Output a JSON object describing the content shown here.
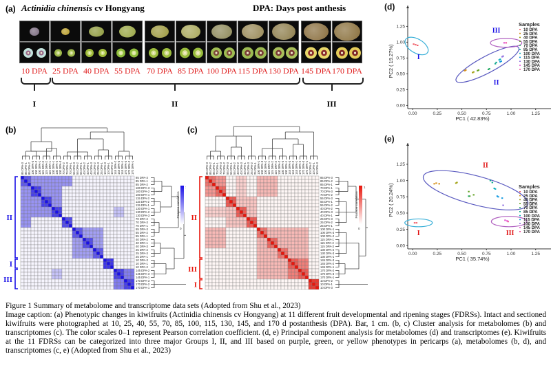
{
  "panel_a": {
    "label": "(a)",
    "species_italic": "Actinidia chinensis",
    "species_rest": " cv Hongyang",
    "dpa_legend": "DPA: Days post anthesis",
    "stages": [
      {
        "label": "10 DPA",
        "skin": "#7a6a7e",
        "flesh": "#c4e3dd",
        "core": "#9a6a8a",
        "phase": "purple"
      },
      {
        "label": "25 DPA",
        "skin": "#b99e2a",
        "flesh": "#9eb84a",
        "core": "#c9d88a",
        "phase": "green"
      },
      {
        "label": "40 DPA",
        "skin": "#8e9a3c",
        "flesh": "#9fbb3a",
        "core": "#d0df8c",
        "phase": "green"
      },
      {
        "label": "55 DPA",
        "skin": "#9aa644",
        "flesh": "#8ebd3b",
        "core": "#d7e69a",
        "phase": "green"
      },
      {
        "label": "70 DPA",
        "skin": "#9e9a40",
        "flesh": "#9cbd3c",
        "core": "#d8df9a",
        "phase": "green"
      },
      {
        "label": "85 DPA",
        "skin": "#a9a85a",
        "flesh": "#98bc3c",
        "core": "#e0e0a0",
        "phase": "green"
      },
      {
        "label": "100 DPA",
        "skin": "#8e8a5a",
        "flesh": "#9fbd52",
        "core": "#7e4a3a",
        "phase": "green"
      },
      {
        "label": "115 DPA",
        "skin": "#9a8a58",
        "flesh": "#9cbb52",
        "core": "#7a3e36",
        "phase": "green"
      },
      {
        "label": "130 DPA",
        "skin": "#8e7e4c",
        "flesh": "#a8c05a",
        "core": "#7a3a36",
        "phase": "green"
      },
      {
        "label": "145 DPA",
        "skin": "#8a6e3e",
        "flesh": "#e8d86a",
        "core": "#8a2c2c",
        "phase": "yellow"
      },
      {
        "label": "170 DPA",
        "skin": "#8a703c",
        "flesh": "#e4cc5a",
        "core": "#7e2626",
        "phase": "yellow"
      }
    ],
    "groups": [
      {
        "label": "I",
        "stages": "10 DPA"
      },
      {
        "label": "II",
        "stages": "25–130 DPA"
      },
      {
        "label": "III",
        "stages": "145–170 DPA"
      }
    ]
  },
  "panel_b": {
    "label": "(b)",
    "colorbar_label": "Pearson correlation",
    "colorbar_max": "1",
    "colorbar_min": "0",
    "accent": "#1a10e6",
    "group_color": "#1a10e6",
    "rows": [
      "85 DPA-3",
      "85 DPA-1",
      "85 DPA-2",
      "100 DPA-3",
      "100 DPA-2",
      "100 DPA-1",
      "115 DPA-3",
      "115 DPA-2",
      "115 DPA-1",
      "130 DPA-1",
      "130 DPA-2",
      "130 DPA-3",
      "70 DPA-2",
      "70 DPA-3",
      "70 DPA-1",
      "55 DPA-3",
      "55 DPA-2",
      "55 DPA-1",
      "40 DPA-2",
      "40 DPA-1",
      "40 DPA-3",
      "25 DPA-2",
      "25 DPA-3",
      "25 DPA-1",
      "10 DPA-3",
      "10 DPA-1",
      "10 DPA-2",
      "145 DPA-2",
      "145 DPA-3",
      "145 DPA-1",
      "170 DPA-3",
      "170 DPA-2",
      "170 DPA-1"
    ],
    "blocks": [
      {
        "start": 0,
        "end": 12,
        "level": 0.45
      },
      {
        "start": 0,
        "end": 3,
        "level": 0.7
      },
      {
        "start": 3,
        "end": 6,
        "level": 0.8
      },
      {
        "start": 6,
        "end": 9,
        "level": 0.8
      },
      {
        "start": 9,
        "end": 12,
        "level": 0.8
      },
      {
        "start": 12,
        "end": 15,
        "level": 0.75
      },
      {
        "start": 15,
        "end": 24,
        "level": 0.4
      },
      {
        "start": 15,
        "end": 18,
        "level": 0.7
      },
      {
        "start": 18,
        "end": 21,
        "level": 0.75
      },
      {
        "start": 21,
        "end": 24,
        "level": 0.7
      },
      {
        "start": 24,
        "end": 27,
        "level": 0.85
      },
      {
        "start": 27,
        "end": 33,
        "level": 0.55
      },
      {
        "start": 27,
        "end": 30,
        "level": 0.8
      },
      {
        "start": 30,
        "end": 33,
        "level": 0.8
      }
    ],
    "groups": [
      {
        "label": "II",
        "start": 0,
        "end": 24
      },
      {
        "label": "I",
        "start": 24,
        "end": 27
      },
      {
        "label": "III",
        "start": 27,
        "end": 33
      }
    ],
    "side_groups": [
      {
        "label": "II"
      },
      {
        "label": "III"
      },
      {
        "label": "I"
      }
    ]
  },
  "panel_c": {
    "label": "(c)",
    "colorbar_label": "Pearson correlation",
    "colorbar_max": "1",
    "colorbar_min": "0",
    "accent": "#e8160c",
    "group_color": "#e8160c",
    "rows": [
      "85 DPA-3",
      "85 DPA-2",
      "85 DPA-1",
      "70 DPA-1",
      "70 DPA-3",
      "70 DPA-2",
      "55 DPA-3",
      "55 DPA-1",
      "55 DPA-2",
      "40 DPA-2",
      "40 DPA-3",
      "40 DPA-1",
      "25 DPA-3",
      "25 DPA-2",
      "25 DPA-1",
      "100 DPA-1",
      "100 DPA-3",
      "100 DPA-2",
      "115 DPA-1",
      "115 DPA-2",
      "115 DPA-3",
      "130 DPA-2",
      "130 DPA-3",
      "130 DPA-1",
      "145 DPA-3",
      "145 DPA-2",
      "145 DPA-1",
      "170 DPA-2",
      "170 DPA-3",
      "170 DPA-1",
      "10 DPA-2",
      "10 DPA-1",
      "10 DPA-3"
    ],
    "blocks": [
      {
        "start": 0,
        "end": 6,
        "level": 0.45
      },
      {
        "start": 0,
        "end": 3,
        "level": 0.6
      },
      {
        "start": 3,
        "end": 6,
        "level": 0.65
      },
      {
        "start": 6,
        "end": 15,
        "level": 0.25
      },
      {
        "start": 6,
        "end": 9,
        "level": 0.7
      },
      {
        "start": 9,
        "end": 12,
        "level": 0.7
      },
      {
        "start": 12,
        "end": 15,
        "level": 0.7
      },
      {
        "start": 15,
        "end": 24,
        "level": 0.3
      },
      {
        "start": 15,
        "end": 18,
        "level": 0.6
      },
      {
        "start": 18,
        "end": 21,
        "level": 0.65
      },
      {
        "start": 21,
        "end": 24,
        "level": 0.6
      },
      {
        "start": 24,
        "end": 30,
        "level": 0.55
      },
      {
        "start": 24,
        "end": 27,
        "level": 0.7
      },
      {
        "start": 27,
        "end": 30,
        "level": 0.7
      },
      {
        "start": 30,
        "end": 33,
        "level": 0.85
      }
    ],
    "groups": [
      {
        "label": "II",
        "start": 0,
        "end": 24
      },
      {
        "label": "III",
        "start": 24,
        "end": 30
      },
      {
        "label": "I",
        "start": 30,
        "end": 33
      }
    ]
  },
  "legend_samples": [
    {
      "label": "10 DPA",
      "color": "#f0606a"
    },
    {
      "label": "25 DPA",
      "color": "#d6901a"
    },
    {
      "label": "40 DPA",
      "color": "#a0a010"
    },
    {
      "label": "55 DPA",
      "color": "#60a020"
    },
    {
      "label": "70 DPA",
      "color": "#20a860"
    },
    {
      "label": "85 DPA",
      "color": "#10a890"
    },
    {
      "label": "100 DPA",
      "color": "#10b0c0"
    },
    {
      "label": "115 DPA",
      "color": "#1098e0"
    },
    {
      "label": "130 DPA",
      "color": "#9070e0"
    },
    {
      "label": "145 DPA",
      "color": "#e050d0"
    },
    {
      "label": "170 DPA",
      "color": "#f050a0"
    }
  ],
  "chart_data": [
    {
      "id": "d",
      "type": "scatter",
      "title": "(d)",
      "xlabel": "PC1 ( 42.83%)",
      "ylabel": "PC2 ( 19.27%)",
      "xlim": [
        -0.05,
        1.35
      ],
      "ylim": [
        -0.05,
        1.45
      ],
      "xticks": [
        "0.00",
        "0.25",
        "0.50",
        "0.75",
        "1.00",
        "1.25"
      ],
      "yticks": [
        "0.00",
        "0.25",
        "0.50",
        "0.75",
        "1.00",
        "1.25"
      ],
      "legend_title": "Samples",
      "legend_position": "right",
      "series": [
        {
          "name": "10 DPA",
          "x": [
            0.01,
            0.03,
            0.05
          ],
          "y": [
            0.97,
            0.96,
            0.95
          ]
        },
        {
          "name": "25 DPA",
          "x": [
            0.53,
            0.54
          ],
          "y": [
            0.55,
            0.56
          ]
        },
        {
          "name": "40 DPA",
          "x": [
            0.61,
            0.62
          ],
          "y": [
            0.52,
            0.53
          ]
        },
        {
          "name": "55 DPA",
          "x": [
            0.66,
            0.67
          ],
          "y": [
            0.55,
            0.56
          ]
        },
        {
          "name": "70 DPA",
          "x": [
            0.77,
            0.78
          ],
          "y": [
            0.57,
            0.58
          ]
        },
        {
          "name": "85 DPA",
          "x": [
            0.84,
            0.85
          ],
          "y": [
            0.66,
            0.68
          ]
        },
        {
          "name": "100 DPA",
          "x": [
            0.88,
            0.89
          ],
          "y": [
            0.72,
            0.73
          ]
        },
        {
          "name": "115 DPA",
          "x": [
            0.89,
            0.9
          ],
          "y": [
            0.69,
            0.7
          ]
        },
        {
          "name": "130 DPA",
          "x": [
            0.91,
            0.92
          ],
          "y": [
            0.77,
            0.78
          ]
        },
        {
          "name": "145 DPA",
          "x": [
            0.93
          ],
          "y": [
            0.99
          ]
        },
        {
          "name": "170 DPA",
          "x": [
            0.95
          ],
          "y": [
            0.99
          ]
        }
      ],
      "ellipses": [
        {
          "group": "I",
          "cx": 0.04,
          "cy": 0.94,
          "rx": 0.13,
          "ry": 0.11,
          "angle": -30,
          "color": "#3ab0d8"
        },
        {
          "group": "II",
          "cx": 0.76,
          "cy": 0.65,
          "rx": 0.36,
          "ry": 0.13,
          "angle": 28,
          "color": "#5a5ac0"
        },
        {
          "group": "III",
          "cx": 0.95,
          "cy": 0.99,
          "rx": 0.16,
          "ry": 0.07,
          "angle": 0,
          "color": "#b060c0"
        }
      ],
      "annotations": [
        {
          "text": "I",
          "x": 0.06,
          "y": 0.73,
          "color": "#1a10e6"
        },
        {
          "text": "II",
          "x": 0.85,
          "y": 0.33,
          "color": "#1a10e6"
        },
        {
          "text": "III",
          "x": 0.85,
          "y": 1.15,
          "color": "#1a10e6"
        }
      ]
    },
    {
      "id": "e",
      "type": "scatter",
      "title": "(e)",
      "xlabel": "PC1 ( 35.74%)",
      "ylabel": "PC2 ( 20.24%)",
      "xlim": [
        -0.05,
        1.35
      ],
      "ylim": [
        -0.05,
        1.45
      ],
      "xticks": [
        "0.00",
        "0.25",
        "0.50",
        "0.75",
        "1.00",
        "1.25"
      ],
      "yticks": [
        "0.00",
        "0.25",
        "0.50",
        "0.75",
        "1.00",
        "1.25"
      ],
      "legend_title": "Samples",
      "legend_position": "right",
      "series": [
        {
          "name": "10 DPA",
          "x": [
            0.02,
            0.04
          ],
          "y": [
            0.35,
            0.35
          ]
        },
        {
          "name": "25 DPA",
          "x": [
            0.22,
            0.24,
            0.27
          ],
          "y": [
            0.95,
            0.96,
            0.95
          ]
        },
        {
          "name": "40 DPA",
          "x": [
            0.44,
            0.45
          ],
          "y": [
            0.96,
            0.97
          ]
        },
        {
          "name": "55 DPA",
          "x": [
            0.57,
            0.58,
            0.62
          ],
          "y": [
            0.83,
            0.76,
            0.78
          ]
        },
        {
          "name": "70 DPA",
          "x": [
            0.57
          ],
          "y": [
            0.76
          ]
        },
        {
          "name": "85 DPA",
          "x": [
            0.79,
            0.81
          ],
          "y": [
            1.0,
            0.97
          ]
        },
        {
          "name": "100 DPA",
          "x": [
            0.83,
            0.84
          ],
          "y": [
            0.88,
            0.87
          ]
        },
        {
          "name": "115 DPA",
          "x": [
            0.86,
            0.87,
            0.91
          ],
          "y": [
            0.76,
            0.75,
            0.73
          ]
        },
        {
          "name": "130 DPA",
          "x": [
            0.92
          ],
          "y": [
            0.62
          ]
        },
        {
          "name": "145 DPA",
          "x": [
            0.94,
            0.96
          ],
          "y": [
            0.39,
            0.38
          ]
        },
        {
          "name": "170 DPA",
          "x": [
            0.97
          ],
          "y": [
            0.37
          ]
        }
      ],
      "ellipses": [
        {
          "group": "I",
          "cx": 0.06,
          "cy": 0.35,
          "rx": 0.14,
          "ry": 0.06,
          "angle": 0,
          "color": "#3ab0d8"
        },
        {
          "group": "II",
          "cx": 0.64,
          "cy": 0.85,
          "rx": 0.55,
          "ry": 0.22,
          "angle": -15,
          "color": "#5a5ac0"
        },
        {
          "group": "III",
          "cx": 0.98,
          "cy": 0.37,
          "rx": 0.18,
          "ry": 0.08,
          "angle": 0,
          "color": "#b060c0"
        }
      ],
      "annotations": [
        {
          "text": "I",
          "x": 0.06,
          "y": 0.16,
          "color": "#e01010"
        },
        {
          "text": "II",
          "x": 0.74,
          "y": 1.2,
          "color": "#e01010"
        },
        {
          "text": "III",
          "x": 0.99,
          "y": 0.16,
          "color": "#e01010"
        }
      ]
    }
  ],
  "caption": {
    "line1": "Figure 1 Summary of metabolome and transcriptome data sets (Adopted from Shu et al., 2023)",
    "body": "Image caption: (a) Phenotypic changes in kiwifruits (Actinidia chinensis cv Hongyang) at 11 different fruit developmental and ripening stages (FDRSs). Intact and sectioned kiwifruits were photographed at 10, 25, 40, 55, 70, 85, 100, 115, 130, 145, and 170 d postanthesis (DPA). Bar, 1 cm. (b, c) Cluster analysis for metabolomes (b) and transcriptomes (c). The color scales 0–1 represent Pearson correlation coefficient. (d, e) Principal component analysis for metabolomes (d) and transcriptomes (e). Kiwifruits at the 11 FDRSs can be categorized into three major Groups I, II, and III based on purple, green, or yellow phenotypes in pericarps (a), metabolomes (b, d), and transcriptomes (c, e) (Adopted from Shu et al., 2023)"
  }
}
